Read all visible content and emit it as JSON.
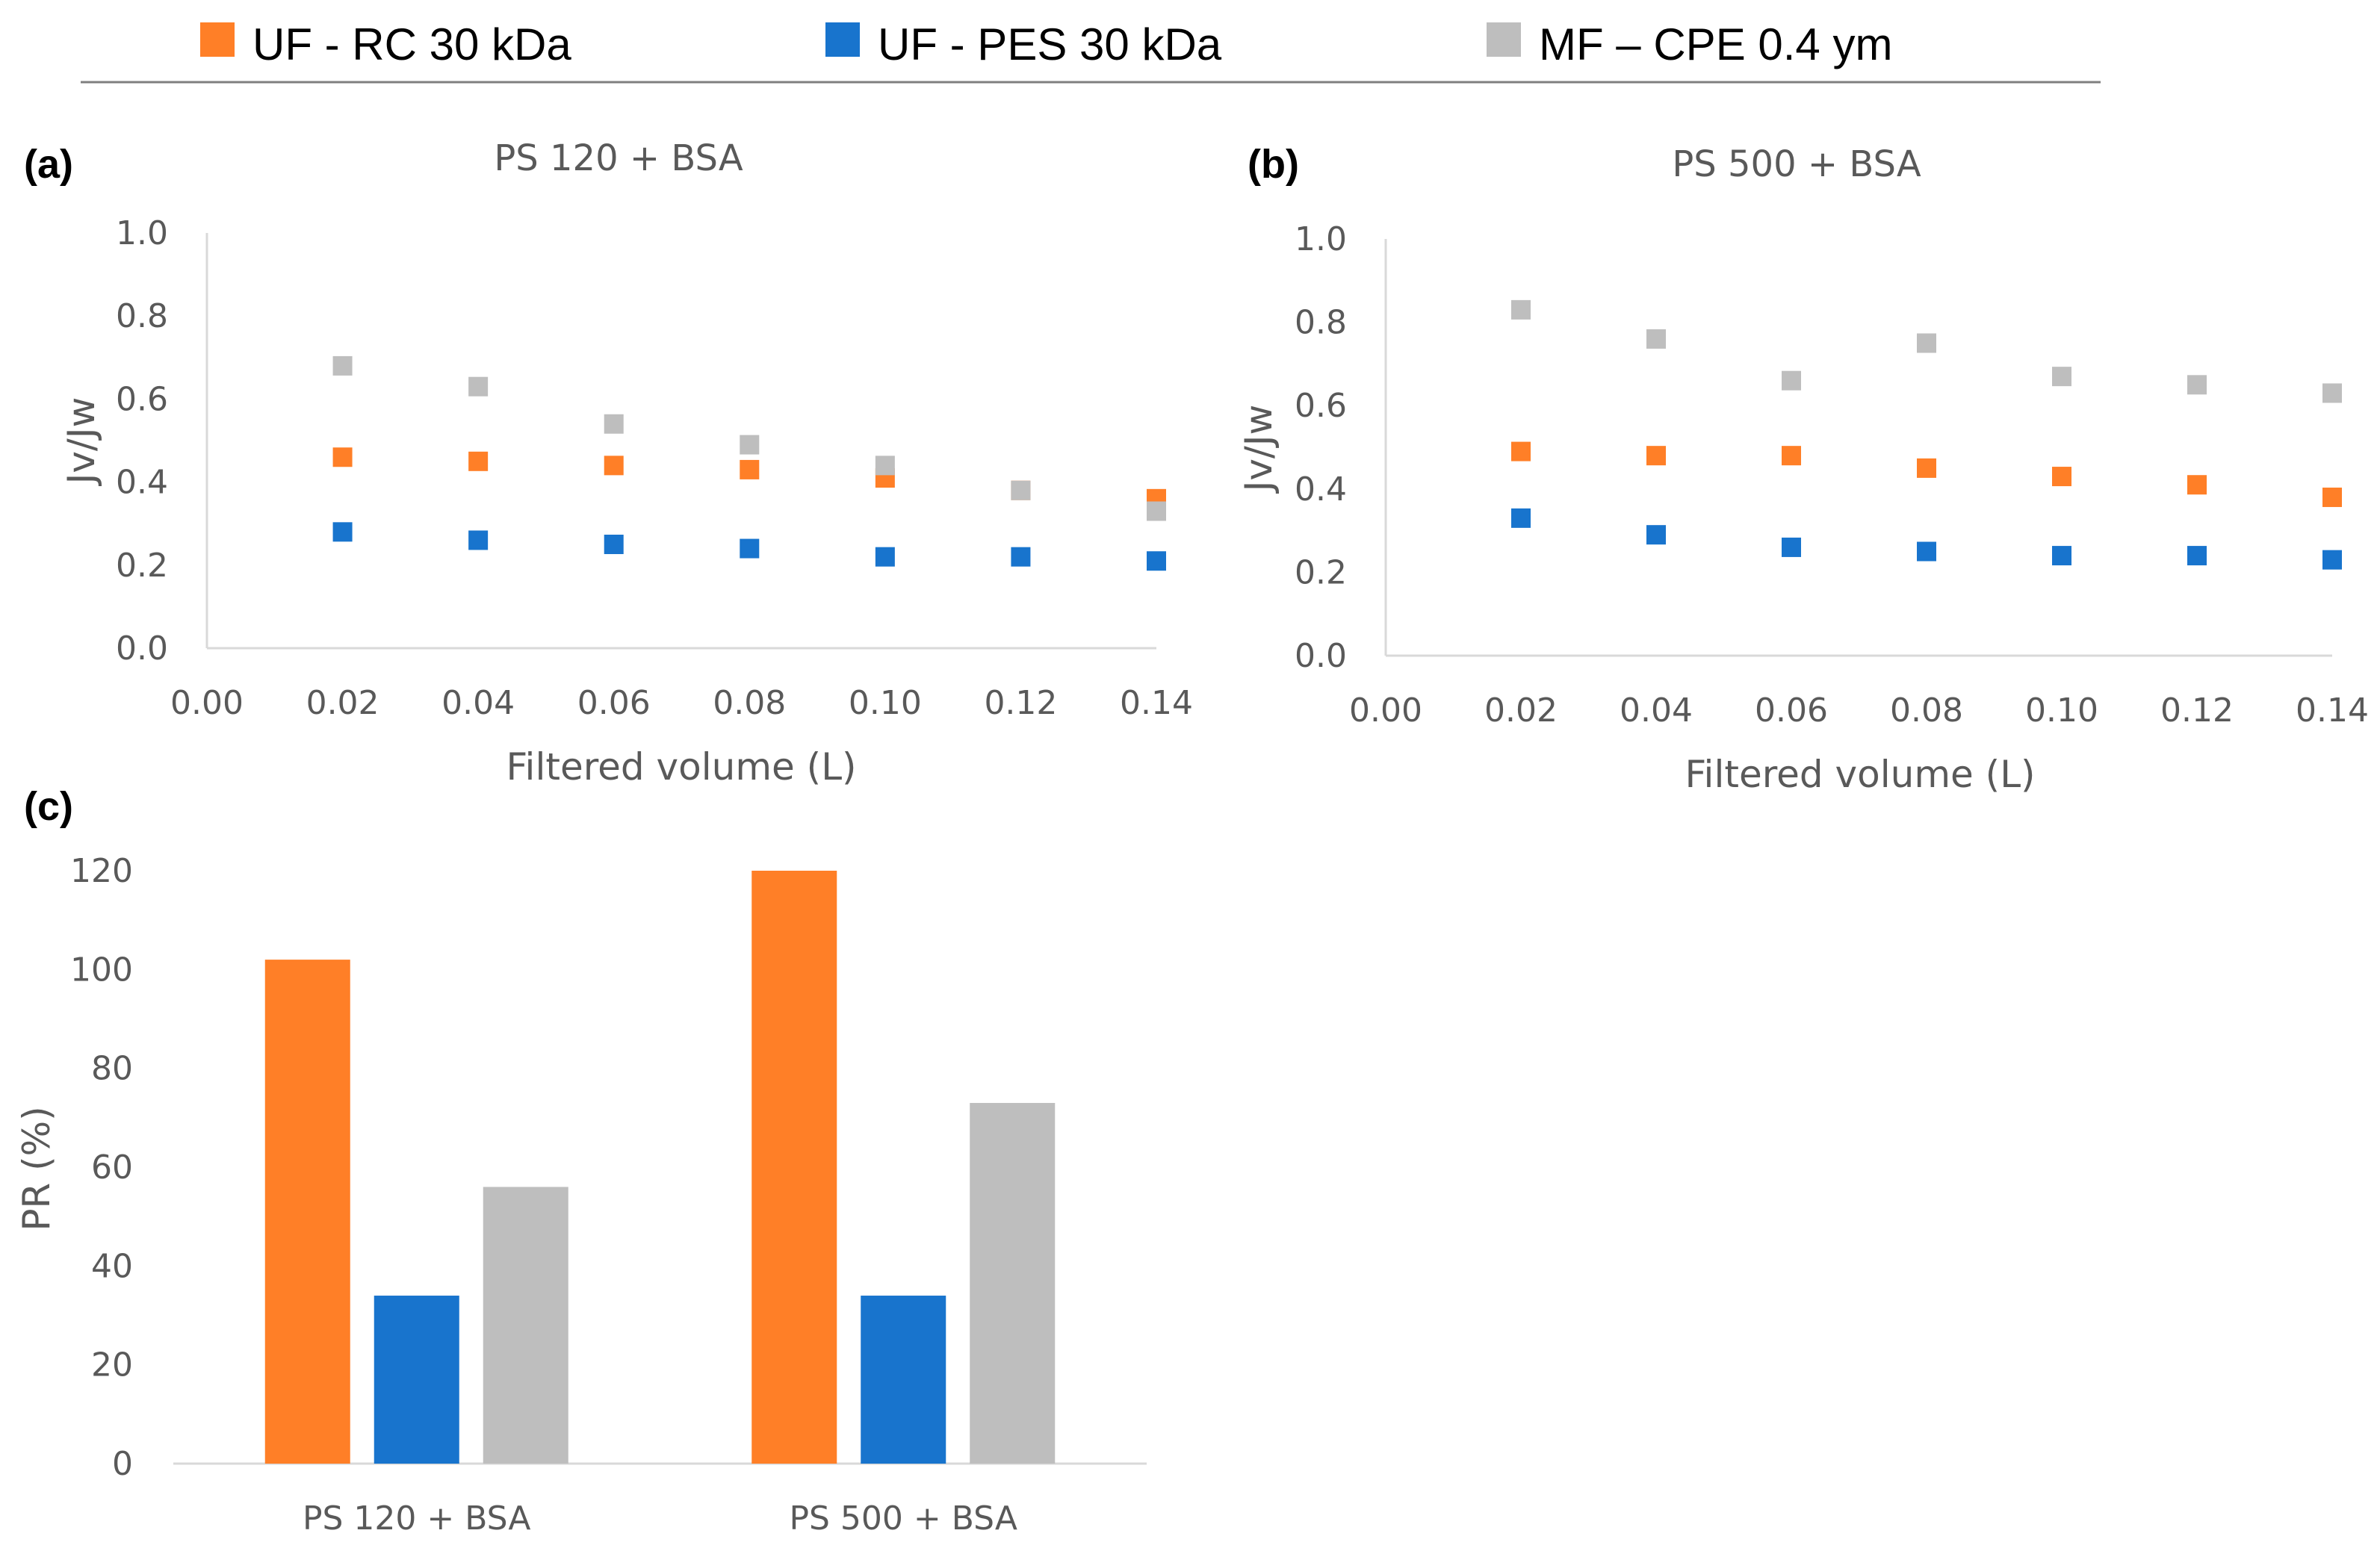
{
  "legend": {
    "items": [
      {
        "name": "UF - RC 30 kDa",
        "color": "#FF7F27"
      },
      {
        "name": "UF - PES 30 kDa",
        "color": "#1874CD"
      },
      {
        "name": "MF – CPE 0.4 ym",
        "color": "#BEBEBE"
      }
    ]
  },
  "chart_data": [
    {
      "panel_label": "(a)",
      "type": "scatter",
      "title": "PS 120 + BSA",
      "xlabel": "Filtered volume (L)",
      "ylabel": "Jv/Jw",
      "xlim": [
        0,
        0.14
      ],
      "ylim": [
        0,
        1.0
      ],
      "x_ticks": [
        "0.00",
        "0.02",
        "0.04",
        "0.06",
        "0.08",
        "0.10",
        "0.12",
        "0.14"
      ],
      "y_ticks": [
        "0.0",
        "0.2",
        "0.4",
        "0.6",
        "0.8",
        "1.0"
      ],
      "x": [
        0.02,
        0.04,
        0.06,
        0.08,
        0.1,
        0.12,
        0.14
      ],
      "series": [
        {
          "name": "UF - RC 30 kDa",
          "values": [
            0.46,
            0.45,
            0.44,
            0.43,
            0.41,
            0.38,
            0.36
          ]
        },
        {
          "name": "UF - PES 30 kDa",
          "values": [
            0.28,
            0.26,
            0.25,
            0.24,
            0.22,
            0.22,
            0.21
          ]
        },
        {
          "name": "MF – CPE 0.4 ym",
          "values": [
            0.68,
            0.63,
            0.54,
            0.49,
            0.44,
            0.38,
            0.33
          ]
        }
      ]
    },
    {
      "panel_label": "(b)",
      "type": "scatter",
      "title": "PS 500 + BSA",
      "xlabel": "Filtered volume (L)",
      "ylabel": "Jv/Jw",
      "xlim": [
        0,
        0.14
      ],
      "ylim": [
        0,
        1.0
      ],
      "x_ticks": [
        "0.00",
        "0.02",
        "0.04",
        "0.06",
        "0.08",
        "0.10",
        "0.12",
        "0.14"
      ],
      "y_ticks": [
        "0.0",
        "0.2",
        "0.4",
        "0.6",
        "0.8",
        "1.0"
      ],
      "x": [
        0.02,
        0.04,
        0.06,
        0.08,
        0.1,
        0.12,
        0.14
      ],
      "series": [
        {
          "name": "UF - RC 30 kDa",
          "values": [
            0.49,
            0.48,
            0.48,
            0.45,
            0.43,
            0.41,
            0.38
          ]
        },
        {
          "name": "UF - PES 30 kDa",
          "values": [
            0.33,
            0.29,
            0.26,
            0.25,
            0.24,
            0.24,
            0.23
          ]
        },
        {
          "name": "MF – CPE 0.4 ym",
          "values": [
            0.83,
            0.76,
            0.66,
            0.75,
            0.67,
            0.65,
            0.63
          ]
        }
      ]
    },
    {
      "panel_label": "(c)",
      "type": "bar",
      "title": "",
      "xlabel": "",
      "ylabel": "PR (%)",
      "ylim": [
        0,
        120
      ],
      "y_ticks": [
        "0",
        "20",
        "40",
        "60",
        "80",
        "100",
        "120"
      ],
      "categories": [
        "PS 120 + BSA",
        "PS 500 + BSA"
      ],
      "series": [
        {
          "name": "UF - RC 30 kDa",
          "values": [
            102,
            120
          ]
        },
        {
          "name": "UF - PES 30 kDa",
          "values": [
            34,
            34
          ]
        },
        {
          "name": "MF – CPE 0.4 ym",
          "values": [
            56,
            73
          ]
        }
      ]
    }
  ]
}
